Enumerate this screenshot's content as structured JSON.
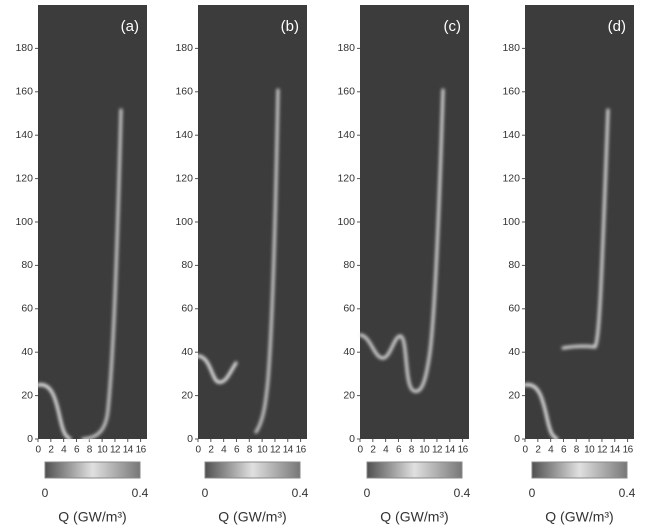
{
  "chart_data": [
    {
      "type": "heatmap",
      "label": "(a)",
      "xlim": [
        0,
        17
      ],
      "ylim": [
        0,
        200
      ],
      "xticks": [
        0,
        2,
        4,
        6,
        8,
        10,
        12,
        14,
        16
      ],
      "yticks": [
        0,
        20,
        40,
        60,
        80,
        100,
        120,
        140,
        160,
        180
      ],
      "colorbar": {
        "lim": [
          0,
          0.4
        ],
        "ticks": [
          0,
          0.4
        ],
        "label": "Q (GW/m³)"
      }
    },
    {
      "type": "heatmap",
      "label": "(b)",
      "xlim": [
        0,
        17
      ],
      "ylim": [
        0,
        200
      ],
      "xticks": [
        0,
        2,
        4,
        6,
        8,
        10,
        12,
        14,
        16
      ],
      "yticks": [
        0,
        20,
        40,
        60,
        80,
        100,
        120,
        140,
        160,
        180
      ],
      "colorbar": {
        "lim": [
          0,
          0.4
        ],
        "ticks": [
          0,
          0.4
        ],
        "label": "Q (GW/m³)"
      }
    },
    {
      "type": "heatmap",
      "label": "(c)",
      "xlim": [
        0,
        17
      ],
      "ylim": [
        0,
        200
      ],
      "xticks": [
        0,
        2,
        4,
        6,
        8,
        10,
        12,
        14,
        16
      ],
      "yticks": [
        0,
        20,
        40,
        60,
        80,
        100,
        120,
        140,
        160,
        180
      ],
      "colorbar": {
        "lim": [
          0,
          0.4
        ],
        "ticks": [
          0,
          0.4
        ],
        "label": "Q (GW/m³)"
      }
    },
    {
      "type": "heatmap",
      "label": "(d)",
      "xlim": [
        0,
        17
      ],
      "ylim": [
        0,
        200
      ],
      "xticks": [
        0,
        2,
        4,
        6,
        8,
        10,
        12,
        14,
        16
      ],
      "yticks": [
        0,
        20,
        40,
        60,
        80,
        100,
        120,
        140,
        160,
        180
      ],
      "colorbar": {
        "lim": [
          0,
          0.4
        ],
        "ticks": [
          0,
          0.4
        ],
        "label": "Q (GW/m³)"
      }
    }
  ]
}
